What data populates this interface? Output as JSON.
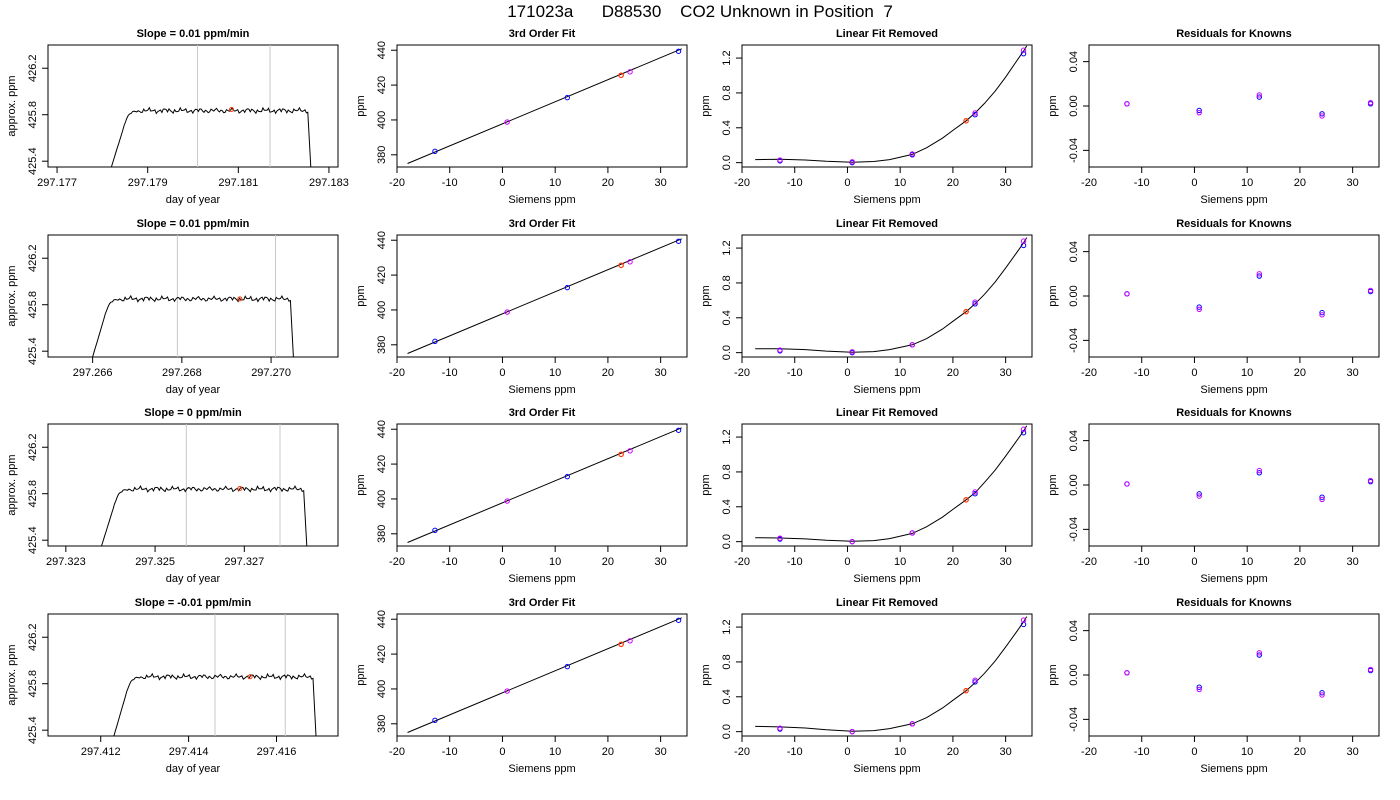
{
  "title": "171023a      D88530    CO2 Unknown in Position  7",
  "colors": {
    "trace": "#000000",
    "unknown": "#ff3300",
    "known": "#0000ff",
    "known_alt": "#cc00ff",
    "vline": "#c8c8c8"
  },
  "chart_data": [
    {
      "type": "line",
      "title": "Slope =  0.01  ppm/min",
      "xlabel": "day of year",
      "ylabel": "approx. ppm",
      "xlim": [
        297.1768,
        297.1832
      ],
      "ylim": [
        425.35,
        426.4
      ],
      "xticks": [
        297.177,
        297.179,
        297.181,
        297.183
      ],
      "yticks": [
        425.4,
        425.8,
        426.2
      ],
      "trace_x": [
        297.1782,
        297.1826
      ],
      "plateau": 425.835,
      "vlines": [
        297.1801,
        297.1817
      ],
      "unknown_point": [
        297.18085,
        425.845
      ]
    },
    {
      "type": "scatter",
      "title": "3rd Order Fit",
      "xlabel": "Siemens ppm",
      "ylabel": "ppm",
      "xlim": [
        -20,
        35
      ],
      "ylim": [
        373,
        443
      ],
      "xticks": [
        -20,
        -10,
        0,
        10,
        20,
        30
      ],
      "yticks": [
        380,
        400,
        420,
        440
      ],
      "line": [
        [
          -18,
          375
        ],
        [
          34,
          440.8
        ]
      ],
      "knowns": [
        [
          -12.8,
          382
        ],
        [
          0.9,
          398.8
        ],
        [
          12.3,
          412.8
        ],
        [
          24.2,
          427.6
        ],
        [
          33.4,
          439.4
        ]
      ],
      "unknown": [
        22.5,
        425.6
      ]
    },
    {
      "type": "scatter",
      "title": "Linear Fit Removed",
      "xlabel": "Siemens ppm",
      "ylabel": "ppm",
      "xlim": [
        -20,
        35
      ],
      "ylim": [
        -0.05,
        1.35
      ],
      "xticks": [
        -20,
        -10,
        0,
        10,
        20,
        30
      ],
      "yticks": [
        0.0,
        0.4,
        0.8,
        1.2
      ],
      "curve": [
        [
          -17.5,
          0.035
        ],
        [
          -12.8,
          0.038
        ],
        [
          -8,
          0.03
        ],
        [
          -4,
          0.015
        ],
        [
          0.9,
          0.005
        ],
        [
          5,
          0.013
        ],
        [
          8,
          0.035
        ],
        [
          12.3,
          0.095
        ],
        [
          15,
          0.17
        ],
        [
          18,
          0.28
        ],
        [
          20,
          0.37
        ],
        [
          22.5,
          0.48
        ],
        [
          24.2,
          0.57
        ],
        [
          26,
          0.68
        ],
        [
          28,
          0.82
        ],
        [
          30,
          0.98
        ],
        [
          32,
          1.16
        ],
        [
          33.4,
          1.28
        ],
        [
          34,
          1.34
        ]
      ],
      "knowns": [
        [
          -12.8,
          0.02
        ],
        [
          -12.8,
          0.03
        ],
        [
          0.9,
          0.0
        ],
        [
          0.9,
          0.01
        ],
        [
          12.3,
          0.09
        ],
        [
          12.3,
          0.1
        ],
        [
          24.2,
          0.55
        ],
        [
          24.2,
          0.57
        ],
        [
          33.4,
          1.25
        ],
        [
          33.4,
          1.29
        ]
      ],
      "unknown": [
        22.5,
        0.48
      ]
    },
    {
      "type": "scatter",
      "title": "Residuals for Knowns",
      "xlabel": "Siemens ppm",
      "ylabel": "ppm",
      "xlim": [
        -20,
        35
      ],
      "ylim": [
        -0.055,
        0.055
      ],
      "xticks": [
        -20,
        -10,
        0,
        10,
        20,
        30
      ],
      "yticks": [
        -0.04,
        0.0,
        0.04
      ],
      "points": [
        [
          -12.8,
          0.002
        ],
        [
          -12.8,
          0.002
        ],
        [
          0.9,
          -0.004
        ],
        [
          0.9,
          -0.006
        ],
        [
          12.3,
          0.008
        ],
        [
          12.3,
          0.01
        ],
        [
          24.2,
          -0.007
        ],
        [
          24.2,
          -0.009
        ],
        [
          33.4,
          0.002
        ],
        [
          33.4,
          0.003
        ]
      ]
    },
    {
      "type": "line",
      "title": "Slope =  0.01  ppm/min",
      "xlabel": "day of year",
      "ylabel": "approx. ppm",
      "xlim": [
        297.265,
        297.2715
      ],
      "ylim": [
        425.35,
        426.4
      ],
      "xticks": [
        297.266,
        297.268,
        297.27
      ],
      "yticks": [
        425.4,
        425.8,
        426.2
      ],
      "trace_x": [
        297.266,
        297.2705
      ],
      "plateau": 425.85,
      "vlines": [
        297.2679,
        297.2701
      ],
      "unknown_point": [
        297.2693,
        425.85
      ]
    },
    {
      "type": "scatter",
      "title": "3rd Order Fit",
      "xlabel": "Siemens ppm",
      "ylabel": "ppm",
      "xlim": [
        -20,
        35
      ],
      "ylim": [
        373,
        443
      ],
      "xticks": [
        -20,
        -10,
        0,
        10,
        20,
        30
      ],
      "yticks": [
        380,
        400,
        420,
        440
      ],
      "line": [
        [
          -18,
          375
        ],
        [
          34,
          440.8
        ]
      ],
      "knowns": [
        [
          -12.8,
          382
        ],
        [
          0.9,
          398.8
        ],
        [
          12.3,
          412.8
        ],
        [
          24.2,
          427.6
        ],
        [
          33.4,
          439.4
        ]
      ],
      "unknown": [
        22.5,
        425.6
      ]
    },
    {
      "type": "scatter",
      "title": "Linear Fit Removed",
      "xlabel": "Siemens ppm",
      "ylabel": "ppm",
      "xlim": [
        -20,
        35
      ],
      "ylim": [
        -0.05,
        1.35
      ],
      "xticks": [
        -20,
        -10,
        0,
        10,
        20,
        30
      ],
      "yticks": [
        0.0,
        0.4,
        0.8,
        1.2
      ],
      "curve": [
        [
          -17.5,
          0.045
        ],
        [
          -12.8,
          0.045
        ],
        [
          -8,
          0.035
        ],
        [
          -4,
          0.018
        ],
        [
          0.9,
          0.005
        ],
        [
          5,
          0.012
        ],
        [
          8,
          0.035
        ],
        [
          12.3,
          0.09
        ],
        [
          15,
          0.16
        ],
        [
          18,
          0.27
        ],
        [
          20,
          0.36
        ],
        [
          22.5,
          0.47
        ],
        [
          24.2,
          0.56
        ],
        [
          26,
          0.67
        ],
        [
          28,
          0.81
        ],
        [
          30,
          0.97
        ],
        [
          32,
          1.14
        ],
        [
          33.4,
          1.26
        ],
        [
          34,
          1.32
        ]
      ],
      "knowns": [
        [
          -12.8,
          0.02
        ],
        [
          -12.8,
          0.03
        ],
        [
          0.9,
          0.0
        ],
        [
          0.9,
          0.01
        ],
        [
          12.3,
          0.09
        ],
        [
          12.3,
          0.09
        ],
        [
          24.2,
          0.56
        ],
        [
          24.2,
          0.58
        ],
        [
          33.4,
          1.23
        ],
        [
          33.4,
          1.28
        ]
      ],
      "unknown": [
        22.5,
        0.47
      ]
    },
    {
      "type": "scatter",
      "title": "Residuals for Knowns",
      "xlabel": "Siemens ppm",
      "ylabel": "ppm",
      "xlim": [
        -20,
        35
      ],
      "ylim": [
        -0.055,
        0.055
      ],
      "xticks": [
        -20,
        -10,
        0,
        10,
        20,
        30
      ],
      "yticks": [
        -0.04,
        0.0,
        0.04
      ],
      "points": [
        [
          -12.8,
          0.002
        ],
        [
          -12.8,
          0.002
        ],
        [
          0.9,
          -0.01
        ],
        [
          0.9,
          -0.012
        ],
        [
          12.3,
          0.018
        ],
        [
          12.3,
          0.02
        ],
        [
          24.2,
          -0.015
        ],
        [
          24.2,
          -0.017
        ],
        [
          33.4,
          0.004
        ],
        [
          33.4,
          0.005
        ]
      ]
    },
    {
      "type": "line",
      "title": "Slope =  0  ppm/min",
      "xlabel": "day of year",
      "ylabel": "approx. ppm",
      "xlim": [
        297.3226,
        297.3291
      ],
      "ylim": [
        425.35,
        426.4
      ],
      "xticks": [
        297.323,
        297.325,
        297.327
      ],
      "yticks": [
        425.4,
        425.8,
        426.2
      ],
      "trace_x": [
        297.3238,
        297.3284
      ],
      "plateau": 425.84,
      "vlines": [
        297.3257,
        297.3278
      ],
      "unknown_point": [
        297.3269,
        425.845
      ]
    },
    {
      "type": "scatter",
      "title": "3rd Order Fit",
      "xlabel": "Siemens ppm",
      "ylabel": "ppm",
      "xlim": [
        -20,
        35
      ],
      "ylim": [
        373,
        443
      ],
      "xticks": [
        -20,
        -10,
        0,
        10,
        20,
        30
      ],
      "yticks": [
        380,
        400,
        420,
        440
      ],
      "line": [
        [
          -18,
          375
        ],
        [
          34,
          440.8
        ]
      ],
      "knowns": [
        [
          -12.8,
          382
        ],
        [
          0.9,
          398.8
        ],
        [
          12.3,
          412.8
        ],
        [
          24.2,
          427.6
        ],
        [
          33.4,
          439.4
        ]
      ],
      "unknown": [
        22.5,
        425.6
      ]
    },
    {
      "type": "scatter",
      "title": "Linear Fit Removed",
      "xlabel": "Siemens ppm",
      "ylabel": "ppm",
      "xlim": [
        -20,
        35
      ],
      "ylim": [
        -0.05,
        1.35
      ],
      "xticks": [
        -20,
        -10,
        0,
        10,
        20,
        30
      ],
      "yticks": [
        0.0,
        0.4,
        0.8,
        1.2
      ],
      "curve": [
        [
          -17.5,
          0.045
        ],
        [
          -12.8,
          0.042
        ],
        [
          -8,
          0.032
        ],
        [
          -4,
          0.016
        ],
        [
          0.9,
          0.005
        ],
        [
          5,
          0.012
        ],
        [
          8,
          0.035
        ],
        [
          12.3,
          0.095
        ],
        [
          15,
          0.17
        ],
        [
          18,
          0.28
        ],
        [
          20,
          0.37
        ],
        [
          22.5,
          0.48
        ],
        [
          24.2,
          0.56
        ],
        [
          26,
          0.68
        ],
        [
          28,
          0.82
        ],
        [
          30,
          0.98
        ],
        [
          32,
          1.15
        ],
        [
          33.4,
          1.27
        ],
        [
          34,
          1.33
        ]
      ],
      "knowns": [
        [
          -12.8,
          0.03
        ],
        [
          -12.8,
          0.04
        ],
        [
          0.9,
          0.0
        ],
        [
          0.9,
          0.0
        ],
        [
          12.3,
          0.1
        ],
        [
          12.3,
          0.1
        ],
        [
          24.2,
          0.55
        ],
        [
          24.2,
          0.57
        ],
        [
          33.4,
          1.25
        ],
        [
          33.4,
          1.29
        ]
      ],
      "unknown": [
        22.5,
        0.48
      ]
    },
    {
      "type": "scatter",
      "title": "Residuals for Knowns",
      "xlabel": "Siemens ppm",
      "ylabel": "ppm",
      "xlim": [
        -20,
        35
      ],
      "ylim": [
        -0.055,
        0.055
      ],
      "xticks": [
        -20,
        -10,
        0,
        10,
        20,
        30
      ],
      "yticks": [
        -0.04,
        0.0,
        0.04
      ],
      "points": [
        [
          -12.8,
          0.001
        ],
        [
          -12.8,
          0.001
        ],
        [
          0.9,
          -0.008
        ],
        [
          0.9,
          -0.01
        ],
        [
          12.3,
          0.011
        ],
        [
          12.3,
          0.013
        ],
        [
          24.2,
          -0.011
        ],
        [
          24.2,
          -0.013
        ],
        [
          33.4,
          0.003
        ],
        [
          33.4,
          0.004
        ]
      ]
    },
    {
      "type": "line",
      "title": "Slope =  -0.01  ppm/min",
      "xlabel": "day of year",
      "ylabel": "approx. ppm",
      "xlim": [
        297.4108,
        297.4174
      ],
      "ylim": [
        425.35,
        426.4
      ],
      "xticks": [
        297.412,
        297.414,
        297.416
      ],
      "yticks": [
        425.4,
        425.8,
        426.2
      ],
      "trace_x": [
        297.4123,
        297.4169
      ],
      "plateau": 425.86,
      "vlines": [
        297.4146,
        297.4162
      ],
      "unknown_point": [
        297.4154,
        425.86
      ]
    },
    {
      "type": "scatter",
      "title": "3rd Order Fit",
      "xlabel": "Siemens ppm",
      "ylabel": "ppm",
      "xlim": [
        -20,
        35
      ],
      "ylim": [
        373,
        443
      ],
      "xticks": [
        -20,
        -10,
        0,
        10,
        20,
        30
      ],
      "yticks": [
        380,
        400,
        420,
        440
      ],
      "line": [
        [
          -18,
          375
        ],
        [
          34,
          440.8
        ]
      ],
      "knowns": [
        [
          -12.8,
          382
        ],
        [
          0.9,
          398.8
        ],
        [
          12.3,
          412.8
        ],
        [
          24.2,
          427.6
        ],
        [
          33.4,
          439.4
        ]
      ],
      "unknown": [
        22.5,
        425.6
      ]
    },
    {
      "type": "scatter",
      "title": "Linear Fit Removed",
      "xlabel": "Siemens ppm",
      "ylabel": "ppm",
      "xlim": [
        -20,
        35
      ],
      "ylim": [
        -0.05,
        1.35
      ],
      "xticks": [
        -20,
        -10,
        0,
        10,
        20,
        30
      ],
      "yticks": [
        0.0,
        0.4,
        0.8,
        1.2
      ],
      "curve": [
        [
          -17.5,
          0.06
        ],
        [
          -12.8,
          0.055
        ],
        [
          -8,
          0.042
        ],
        [
          -4,
          0.022
        ],
        [
          0.9,
          0.005
        ],
        [
          5,
          0.012
        ],
        [
          8,
          0.035
        ],
        [
          12.3,
          0.09
        ],
        [
          15,
          0.16
        ],
        [
          18,
          0.27
        ],
        [
          20,
          0.36
        ],
        [
          22.5,
          0.47
        ],
        [
          24.2,
          0.56
        ],
        [
          26,
          0.67
        ],
        [
          28,
          0.81
        ],
        [
          30,
          0.97
        ],
        [
          32,
          1.14
        ],
        [
          33.4,
          1.26
        ],
        [
          34,
          1.32
        ]
      ],
      "knowns": [
        [
          -12.8,
          0.03
        ],
        [
          -12.8,
          0.04
        ],
        [
          0.9,
          0.0
        ],
        [
          0.9,
          0.0
        ],
        [
          12.3,
          0.09
        ],
        [
          12.3,
          0.09
        ],
        [
          24.2,
          0.57
        ],
        [
          24.2,
          0.59
        ],
        [
          33.4,
          1.23
        ],
        [
          33.4,
          1.28
        ]
      ],
      "unknown": [
        22.5,
        0.47
      ]
    },
    {
      "type": "scatter",
      "title": "Residuals for Knowns",
      "xlabel": "Siemens ppm",
      "ylabel": "ppm",
      "xlim": [
        -20,
        35
      ],
      "ylim": [
        -0.055,
        0.055
      ],
      "xticks": [
        -20,
        -10,
        0,
        10,
        20,
        30
      ],
      "yticks": [
        -0.04,
        0.0,
        0.04
      ],
      "points": [
        [
          -12.8,
          0.002
        ],
        [
          -12.8,
          0.002
        ],
        [
          0.9,
          -0.011
        ],
        [
          0.9,
          -0.013
        ],
        [
          12.3,
          0.018
        ],
        [
          12.3,
          0.02
        ],
        [
          24.2,
          -0.016
        ],
        [
          24.2,
          -0.018
        ],
        [
          33.4,
          0.004
        ],
        [
          33.4,
          0.005
        ]
      ]
    }
  ]
}
